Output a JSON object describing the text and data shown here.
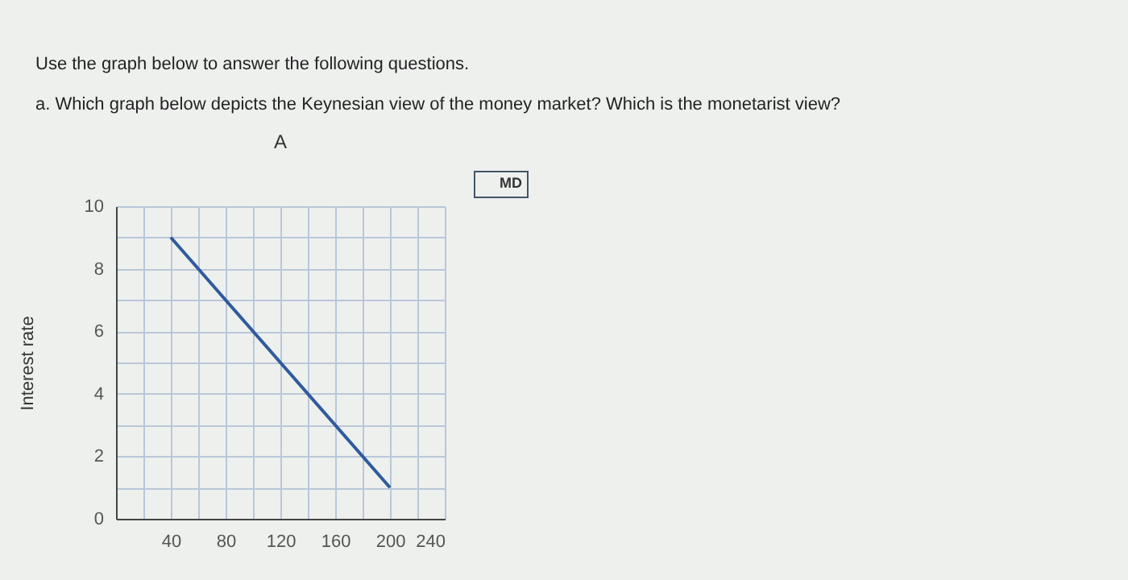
{
  "chart_data": {
    "type": "line",
    "title": "Use the graph below to answer the following questions.",
    "subtitle": "a. Which graph below depicts the Keynesian view of the money market? Which is the monetarist view?",
    "ylabel": "Interest rate",
    "annotations": [
      "A"
    ],
    "x": [
      40,
      200
    ],
    "series": [
      {
        "name": "MD",
        "color": "#2f5b9c",
        "values": [
          9,
          1
        ]
      }
    ],
    "xlim": [
      0,
      240
    ],
    "ylim": [
      0,
      10
    ],
    "xticks": [
      {
        "value": 0,
        "label": null
      },
      {
        "value": 20,
        "label": null
      },
      40,
      {
        "value": 60,
        "label": null
      },
      80,
      {
        "value": 100,
        "label": null
      },
      120,
      {
        "value": 140,
        "label": null
      },
      160,
      {
        "value": 180,
        "label": null
      },
      200,
      {
        "value": 220,
        "label": null
      },
      240
    ],
    "yticks": [
      0,
      {
        "value": 1,
        "label": null
      },
      2,
      {
        "value": 3,
        "label": null
      },
      4,
      {
        "value": 5,
        "label": null
      },
      6,
      {
        "value": 7,
        "label": null
      },
      8,
      {
        "value": 9,
        "label": null
      },
      10
    ],
    "grid": true,
    "legend": "top right",
    "marker": "none",
    "line_style": "solid"
  }
}
